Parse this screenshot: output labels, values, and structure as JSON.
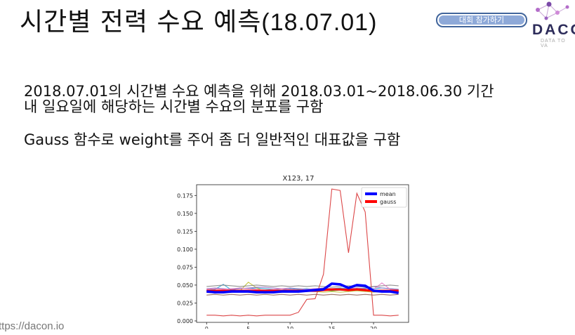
{
  "slide": {
    "title_main": "시간별 전력 수요 예측",
    "title_date": "(18.07.01)",
    "join_button": "대회 참가하기",
    "logo_text": "DACO",
    "logo_tagline": "DATA TO VA",
    "desc_line1": "2018.07.01의 시간별 수요 예측을 위해 2018.03.01~2018.06.30 기간",
    "desc_line2": "내 일요일에 해당하는 시간별 수요의 분포를 구함",
    "desc_line3": "Gauss 함수로 weight를 주어 좀 더 일반적인 대표값을 구함",
    "footer_url": "ttps://dacon.io"
  },
  "chart_data": {
    "type": "line",
    "title": "X123, 17",
    "xlabel": "",
    "ylabel": "",
    "xlim": [
      -1.2,
      24.2
    ],
    "ylim": [
      -0.002,
      0.19
    ],
    "x": [
      0,
      1,
      2,
      3,
      4,
      5,
      6,
      7,
      8,
      9,
      10,
      11,
      12,
      13,
      14,
      15,
      16,
      17,
      18,
      19,
      20,
      21,
      22,
      23
    ],
    "x_ticks": [
      "0",
      "5",
      "10",
      "15",
      "20"
    ],
    "y_ticks": [
      "0.000",
      "0.025",
      "0.050",
      "0.075",
      "0.100",
      "0.125",
      "0.150",
      "0.175"
    ],
    "legend_position": "upper right",
    "colors": {
      "mean": "#0000ff",
      "gauss": "#ff0000"
    },
    "series": [
      {
        "name": "mean",
        "values": [
          0.041,
          0.04,
          0.04,
          0.041,
          0.041,
          0.041,
          0.04,
          0.04,
          0.04,
          0.041,
          0.041,
          0.041,
          0.042,
          0.043,
          0.044,
          0.052,
          0.051,
          0.046,
          0.05,
          0.049,
          0.042,
          0.041,
          0.041,
          0.039
        ]
      },
      {
        "name": "gauss",
        "values": [
          0.042,
          0.042,
          0.042,
          0.042,
          0.042,
          0.042,
          0.042,
          0.042,
          0.042,
          0.042,
          0.042,
          0.042,
          0.042,
          0.042,
          0.043,
          0.044,
          0.044,
          0.043,
          0.044,
          0.043,
          0.042,
          0.042,
          0.042,
          0.042
        ]
      },
      {
        "values": [
          0.008,
          0.008,
          0.007,
          0.008,
          0.007,
          0.008,
          0.007,
          0.008,
          0.008,
          0.008,
          0.008,
          0.012,
          0.03,
          0.031,
          0.065,
          0.184,
          0.182,
          0.095,
          0.178,
          0.152,
          0.008,
          0.008,
          0.007,
          0.008
        ]
      },
      {
        "values": [
          0.043,
          0.044,
          0.051,
          0.043,
          0.046,
          0.045,
          0.046,
          0.045,
          0.044,
          0.043,
          0.045,
          0.044,
          0.045,
          0.044,
          0.043,
          0.045,
          0.046,
          0.045,
          0.044,
          0.046,
          0.045,
          0.046,
          0.045,
          0.044
        ]
      },
      {
        "values": [
          0.04,
          0.039,
          0.041,
          0.04,
          0.042,
          0.054,
          0.046,
          0.041,
          0.04,
          0.041,
          0.04,
          0.041,
          0.042,
          0.041,
          0.04,
          0.041,
          0.04,
          0.041,
          0.042,
          0.041,
          0.04,
          0.041,
          0.042,
          0.041
        ]
      },
      {
        "values": [
          0.045,
          0.046,
          0.045,
          0.044,
          0.045,
          0.046,
          0.047,
          0.047,
          0.046,
          0.045,
          0.046,
          0.045,
          0.044,
          0.045,
          0.046,
          0.045,
          0.044,
          0.045,
          0.046,
          0.045,
          0.048,
          0.046,
          0.045,
          0.044
        ]
      },
      {
        "values": [
          0.042,
          0.043,
          0.042,
          0.043,
          0.042,
          0.043,
          0.042,
          0.043,
          0.043,
          0.042,
          0.043,
          0.042,
          0.043,
          0.042,
          0.043,
          0.042,
          0.043,
          0.042,
          0.043,
          0.042,
          0.043,
          0.042,
          0.043,
          0.042
        ]
      },
      {
        "values": [
          0.048,
          0.049,
          0.05,
          0.049,
          0.048,
          0.049,
          0.05,
          0.049,
          0.048,
          0.049,
          0.048,
          0.049,
          0.048,
          0.049,
          0.048,
          0.047,
          0.048,
          0.049,
          0.048,
          0.047,
          0.048,
          0.049,
          0.05,
          0.049
        ]
      },
      {
        "values": [
          0.036,
          0.037,
          0.036,
          0.037,
          0.036,
          0.037,
          0.036,
          0.037,
          0.036,
          0.037,
          0.036,
          0.037,
          0.036,
          0.037,
          0.036,
          0.037,
          0.036,
          0.037,
          0.036,
          0.037,
          0.036,
          0.037,
          0.036,
          0.037
        ]
      },
      {
        "values": [
          0.044,
          0.045,
          0.044,
          0.045,
          0.046,
          0.045,
          0.044,
          0.043,
          0.044,
          0.045,
          0.044,
          0.043,
          0.044,
          0.045,
          0.044,
          0.043,
          0.044,
          0.045,
          0.044,
          0.043,
          0.044,
          0.053,
          0.044,
          0.043
        ]
      }
    ],
    "background_series_colors": [
      "#d62728",
      "#1f9bd1",
      "#bcbd22",
      "#9467bd",
      "#2ca02c",
      "#7f7f7f",
      "#8c564b",
      "#e377c2"
    ]
  }
}
